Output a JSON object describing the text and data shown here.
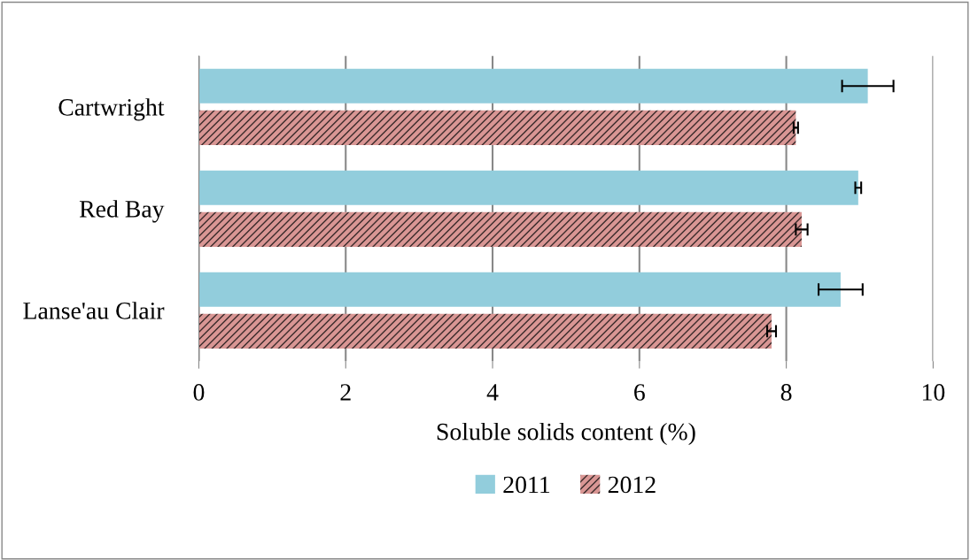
{
  "chart_data": {
    "type": "bar",
    "orientation": "horizontal",
    "xlabel": "Soluble solids content (%)",
    "categories": [
      "Cartwright",
      "Red Bay",
      "Lanse'au Clair"
    ],
    "series": [
      {
        "name": "2011",
        "color": "#92cddc",
        "values": [
          9.11,
          8.98,
          8.74
        ],
        "errors": [
          0.35,
          0.04,
          0.3
        ]
      },
      {
        "name": "2012",
        "color": "#d99694",
        "values": [
          8.13,
          8.21,
          7.8
        ],
        "errors": [
          0.03,
          0.08,
          0.06
        ]
      }
    ],
    "xlim": [
      0,
      10
    ],
    "xticks": [
      0,
      2,
      4,
      6,
      8,
      10
    ],
    "grid": "x",
    "legend": "bottom"
  }
}
